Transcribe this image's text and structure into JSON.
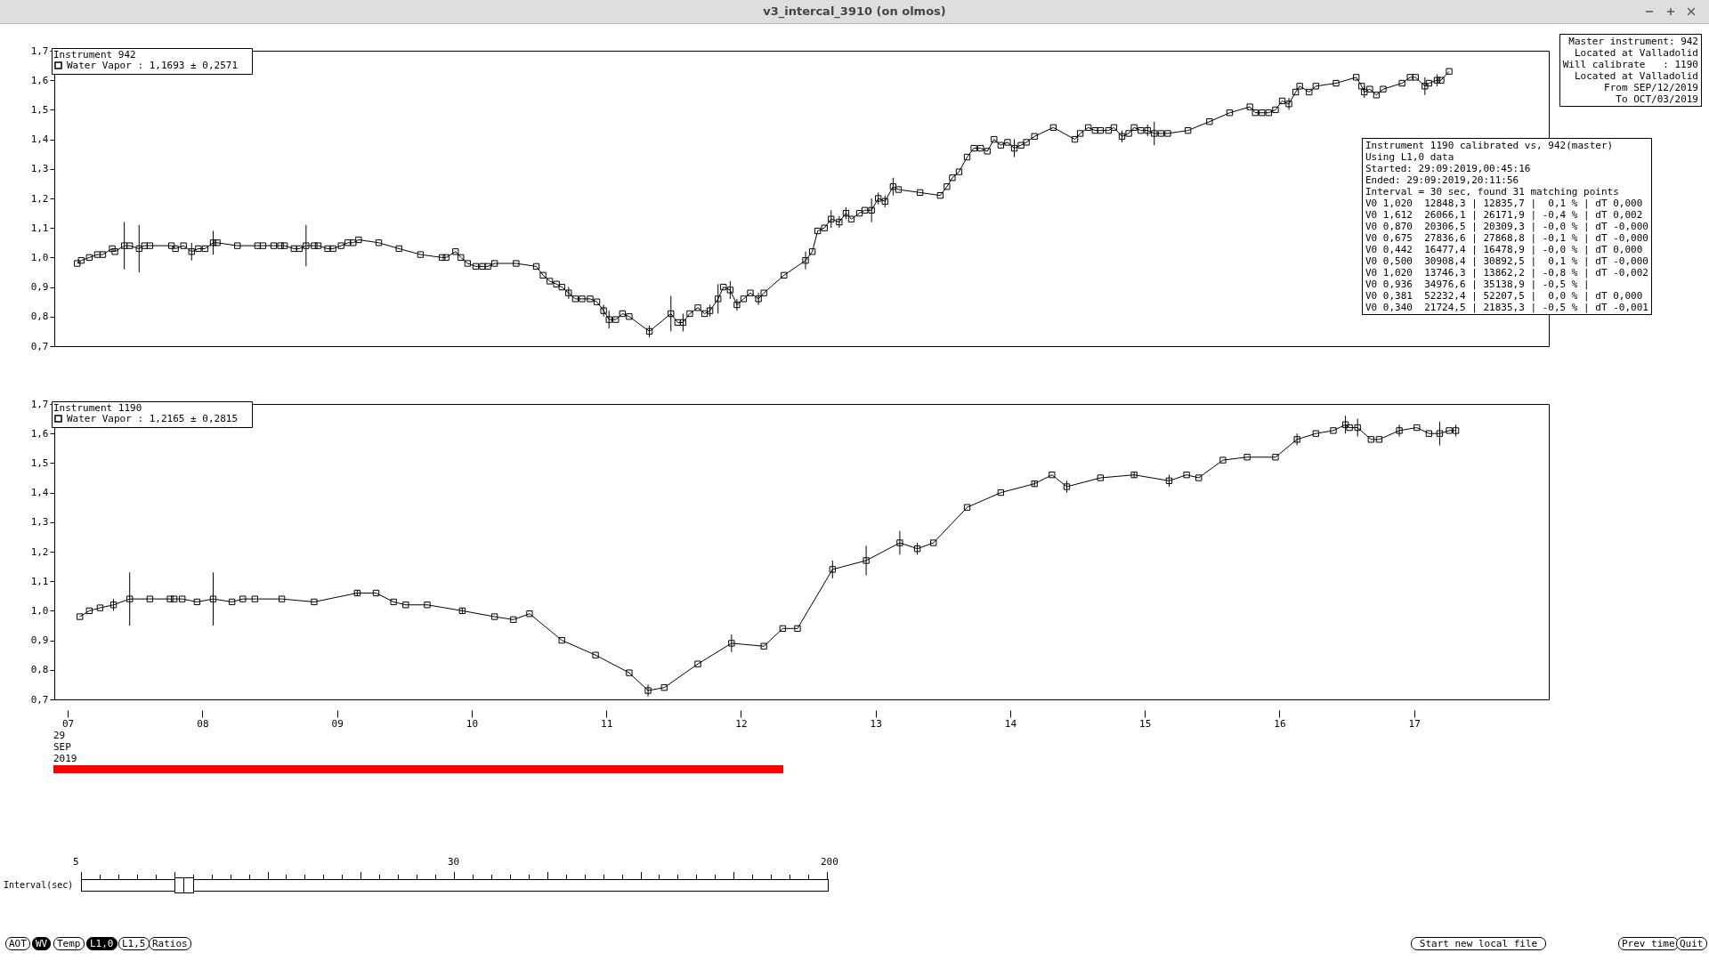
{
  "chart_data": [
    {
      "type": "line",
      "legend_title": "Instrument 942",
      "legend": "top left",
      "marker": "square",
      "tick_labels": "y",
      "xlim": [
        6.9,
        18.0
      ],
      "ylim": [
        0.7,
        1.7
      ],
      "yticks": [
        {
          "value": 0.7,
          "label": "0,7"
        },
        {
          "value": 0.8,
          "label": "0,8"
        },
        {
          "value": 0.9,
          "label": "0,9"
        },
        {
          "value": 1.0,
          "label": "1,0"
        },
        {
          "value": 1.1,
          "label": "1,1"
        },
        {
          "value": 1.2,
          "label": "1,2"
        },
        {
          "value": 1.3,
          "label": "1,3"
        },
        {
          "value": 1.4,
          "label": "1,4"
        },
        {
          "value": 1.5,
          "label": "1,5"
        },
        {
          "value": 1.6,
          "label": "1,6"
        },
        {
          "value": 1.7,
          "label": "1,7"
        }
      ],
      "series": [
        {
          "name": "Water Vapor :   1,1693 ± 0,2571",
          "color": "#000000",
          "x": [
            7.07,
            7.1,
            7.16,
            7.22,
            7.26,
            7.33,
            7.35,
            7.42,
            7.46,
            7.53,
            7.57,
            7.61,
            7.77,
            7.8,
            7.86,
            7.92,
            7.97,
            8.02,
            8.08,
            8.11,
            8.26,
            8.41,
            8.45,
            8.53,
            8.58,
            8.61,
            8.68,
            8.72,
            8.77,
            8.83,
            8.86,
            8.93,
            8.97,
            9.03,
            9.08,
            9.12,
            9.16,
            9.31,
            9.46,
            9.62,
            9.78,
            9.81,
            9.88,
            9.92,
            9.97,
            10.03,
            10.08,
            10.12,
            10.17,
            10.33,
            10.48,
            10.53,
            10.58,
            10.63,
            10.67,
            10.72,
            10.77,
            10.82,
            10.88,
            10.93,
            10.98,
            11.02,
            11.07,
            11.12,
            11.17,
            11.32,
            11.48,
            11.53,
            11.57,
            11.62,
            11.68,
            11.73,
            11.77,
            11.83,
            11.87,
            11.92,
            11.97,
            12.02,
            12.07,
            12.13,
            12.17,
            12.32,
            12.48,
            12.53,
            12.57,
            12.62,
            12.67,
            12.73,
            12.78,
            12.82,
            12.88,
            12.92,
            12.97,
            13.02,
            13.07,
            13.13,
            13.17,
            13.33,
            13.48,
            13.53,
            13.57,
            13.62,
            13.68,
            13.73,
            13.78,
            13.83,
            13.88,
            13.93,
            13.98,
            14.03,
            14.08,
            14.12,
            14.18,
            14.32,
            14.48,
            14.52,
            14.58,
            14.63,
            14.67,
            14.73,
            14.77,
            14.83,
            14.88,
            14.92,
            14.97,
            15.02,
            15.07,
            15.12,
            15.17,
            15.32,
            15.48,
            15.63,
            15.78,
            15.82,
            15.87,
            15.92,
            15.97,
            16.02,
            16.07,
            16.12,
            16.15,
            16.22,
            16.27,
            16.42,
            16.57,
            16.61,
            16.63,
            16.67,
            16.72,
            16.77,
            16.91,
            16.97,
            17.01,
            17.08,
            17.11,
            17.17,
            17.2,
            17.26
          ],
          "values": [
            0.98,
            0.99,
            1.0,
            1.01,
            1.01,
            1.03,
            1.02,
            1.04,
            1.04,
            1.03,
            1.04,
            1.04,
            1.04,
            1.03,
            1.04,
            1.02,
            1.03,
            1.03,
            1.05,
            1.05,
            1.04,
            1.04,
            1.04,
            1.04,
            1.04,
            1.04,
            1.03,
            1.03,
            1.04,
            1.04,
            1.04,
            1.03,
            1.03,
            1.04,
            1.05,
            1.05,
            1.06,
            1.05,
            1.03,
            1.01,
            1.0,
            1.0,
            1.02,
            1.0,
            0.98,
            0.97,
            0.97,
            0.97,
            0.98,
            0.98,
            0.97,
            0.94,
            0.92,
            0.91,
            0.9,
            0.88,
            0.86,
            0.86,
            0.86,
            0.85,
            0.82,
            0.79,
            0.79,
            0.81,
            0.8,
            0.75,
            0.81,
            0.78,
            0.78,
            0.81,
            0.83,
            0.81,
            0.82,
            0.86,
            0.9,
            0.89,
            0.84,
            0.86,
            0.88,
            0.86,
            0.88,
            0.94,
            0.99,
            1.02,
            1.09,
            1.1,
            1.13,
            1.12,
            1.15,
            1.13,
            1.15,
            1.16,
            1.16,
            1.2,
            1.19,
            1.24,
            1.23,
            1.22,
            1.21,
            1.24,
            1.27,
            1.29,
            1.34,
            1.37,
            1.37,
            1.36,
            1.4,
            1.38,
            1.39,
            1.37,
            1.38,
            1.39,
            1.41,
            1.44,
            1.4,
            1.42,
            1.44,
            1.43,
            1.43,
            1.43,
            1.44,
            1.41,
            1.42,
            1.44,
            1.43,
            1.43,
            1.42,
            1.42,
            1.42,
            1.43,
            1.46,
            1.49,
            1.51,
            1.49,
            1.49,
            1.49,
            1.5,
            1.53,
            1.52,
            1.56,
            1.58,
            1.56,
            1.58,
            1.59,
            1.61,
            1.58,
            1.56,
            1.57,
            1.55,
            1.57,
            1.59,
            1.61,
            1.61,
            1.58,
            1.59,
            1.6,
            1.6,
            1.63
          ],
          "errors": [
            null,
            null,
            null,
            null,
            null,
            null,
            null,
            0.08,
            null,
            0.08,
            null,
            null,
            null,
            null,
            null,
            0.03,
            null,
            null,
            0.04,
            null,
            null,
            null,
            null,
            null,
            null,
            null,
            null,
            null,
            0.07,
            null,
            null,
            null,
            null,
            null,
            null,
            null,
            null,
            null,
            null,
            null,
            null,
            null,
            null,
            null,
            null,
            null,
            null,
            null,
            null,
            null,
            null,
            null,
            null,
            null,
            null,
            0.02,
            null,
            null,
            null,
            null,
            0.02,
            0.03,
            null,
            null,
            null,
            0.02,
            0.06,
            null,
            0.03,
            null,
            null,
            null,
            0.02,
            0.05,
            null,
            0.03,
            0.02,
            null,
            null,
            0.02,
            null,
            null,
            0.03,
            null,
            null,
            null,
            0.03,
            0.02,
            0.02,
            null,
            null,
            null,
            0.04,
            0.02,
            0.02,
            0.03,
            null,
            null,
            null,
            null,
            null,
            null,
            null,
            null,
            null,
            null,
            null,
            null,
            null,
            0.03,
            null,
            null,
            null,
            null,
            null,
            null,
            null,
            null,
            null,
            null,
            null,
            0.02,
            null,
            null,
            null,
            0.02,
            0.04,
            null,
            null,
            null,
            null,
            null,
            null,
            null,
            null,
            null,
            null,
            null,
            0.02,
            null,
            null,
            null,
            null,
            null,
            null,
            null,
            0.02,
            null,
            null,
            null,
            null,
            null,
            null,
            0.03,
            null,
            0.02,
            null,
            null
          ]
        }
      ],
      "annotations": [
        "Master instrument: 942\nLocated at Valladolid\nWill calibrate   : 1190\nLocated at Valladolid\nFrom SEP/12/2019\nTo OCT/03/2019",
        "Instrument 1190 calibrated vs, 942(master)\nUsing L1,0 data\nStarted: 29:09:2019,00:45:16\nEnded: 29:09:2019,20:11:56\nInterval = 30 sec, found 31 matching points\nV0 1,020  12848,3 | 12835,7 |  0,1 % | dT 0,000\nV0 1,612  26066,1 | 26171,9 | -0,4 % | dT 0,002\nV0 0,870  20306,5 | 20309,3 | -0,0 % | dT -0,000\nV0 0,675  27836,6 | 27868,8 | -0,1 % | dT -0,000\nV0 0,442  16477,4 | 16478,9 | -0,0 % | dT 0,000\nV0 0,500  30908,4 | 30892,5 |  0,1 % | dT -0,000\nV0 1,020  13746,3 | 13862,2 | -0,8 % | dT -0,002\nV0 0,936  34976,6 | 35138,9 | -0,5 % |\nV0 0,381  52232,4 | 52207,5 |  0,0 % | dT 0,000\nV0 0,340  21724,5 | 21835,3 | -0,5 % | dT -0,001"
      ]
    },
    {
      "type": "line",
      "legend_title": "Instrument 1190",
      "legend": "top left",
      "marker": "square",
      "xlim": [
        6.9,
        18.0
      ],
      "ylim": [
        0.7,
        1.7
      ],
      "xticks": [
        {
          "value": 7,
          "label": "07"
        },
        {
          "value": 8,
          "label": "08"
        },
        {
          "value": 9,
          "label": "09"
        },
        {
          "value": 10,
          "label": "10"
        },
        {
          "value": 11,
          "label": "11"
        },
        {
          "value": 12,
          "label": "12"
        },
        {
          "value": 13,
          "label": "13"
        },
        {
          "value": 14,
          "label": "14"
        },
        {
          "value": 15,
          "label": "15"
        },
        {
          "value": 16,
          "label": "16"
        },
        {
          "value": 17,
          "label": "17"
        }
      ],
      "yticks": [
        {
          "value": 0.7,
          "label": "0,7"
        },
        {
          "value": 0.8,
          "label": "0,8"
        },
        {
          "value": 0.9,
          "label": "0,9"
        },
        {
          "value": 1.0,
          "label": "1,0"
        },
        {
          "value": 1.1,
          "label": "1,1"
        },
        {
          "value": 1.2,
          "label": "1,2"
        },
        {
          "value": 1.3,
          "label": "1,3"
        },
        {
          "value": 1.4,
          "label": "1,4"
        },
        {
          "value": 1.5,
          "label": "1,5"
        },
        {
          "value": 1.6,
          "label": "1,6"
        },
        {
          "value": 1.7,
          "label": "1,7"
        }
      ],
      "series": [
        {
          "name": "Water Vapor :   1,2165 ± 0,2815",
          "color": "#000000",
          "x": [
            7.09,
            7.16,
            7.24,
            7.34,
            7.46,
            7.61,
            7.76,
            7.79,
            7.85,
            7.96,
            8.08,
            8.22,
            8.3,
            8.39,
            8.59,
            8.83,
            9.15,
            9.29,
            9.42,
            9.51,
            9.67,
            9.93,
            10.17,
            10.31,
            10.43,
            10.67,
            10.92,
            11.17,
            11.31,
            11.43,
            11.68,
            11.93,
            12.17,
            12.31,
            12.42,
            12.68,
            12.93,
            13.18,
            13.31,
            13.43,
            13.68,
            13.93,
            14.18,
            14.31,
            14.42,
            14.67,
            14.92,
            15.18,
            15.31,
            15.4,
            15.58,
            15.76,
            15.97,
            16.13,
            16.27,
            16.4,
            16.49,
            16.52,
            16.58,
            16.68,
            16.74,
            16.89,
            17.02,
            17.11,
            17.19,
            17.26,
            17.31
          ],
          "values": [
            0.98,
            1.0,
            1.01,
            1.02,
            1.04,
            1.04,
            1.04,
            1.04,
            1.04,
            1.03,
            1.04,
            1.03,
            1.04,
            1.04,
            1.04,
            1.03,
            1.06,
            1.06,
            1.03,
            1.02,
            1.02,
            1.0,
            0.98,
            0.97,
            0.99,
            0.9,
            0.85,
            0.79,
            0.73,
            0.74,
            0.82,
            0.89,
            0.88,
            0.94,
            0.94,
            1.14,
            1.17,
            1.23,
            1.21,
            1.23,
            1.35,
            1.4,
            1.43,
            1.46,
            1.42,
            1.45,
            1.46,
            1.44,
            1.46,
            1.45,
            1.51,
            1.52,
            1.52,
            1.58,
            1.6,
            1.61,
            1.63,
            1.62,
            1.62,
            1.58,
            1.58,
            1.61,
            1.62,
            1.6,
            1.6,
            1.61,
            1.61
          ],
          "errors": [
            null,
            null,
            null,
            0.02,
            0.09,
            null,
            null,
            null,
            null,
            null,
            0.09,
            null,
            null,
            null,
            null,
            null,
            0.01,
            null,
            null,
            null,
            null,
            0.01,
            null,
            null,
            null,
            null,
            null,
            null,
            0.02,
            null,
            null,
            0.03,
            null,
            null,
            null,
            0.03,
            0.05,
            0.04,
            0.02,
            null,
            null,
            null,
            0.01,
            null,
            0.02,
            null,
            0.01,
            0.02,
            null,
            null,
            null,
            null,
            null,
            0.02,
            null,
            null,
            0.03,
            null,
            0.03,
            null,
            null,
            0.02,
            null,
            null,
            0.04,
            null,
            0.02
          ]
        }
      ],
      "annotations": [
        "29\nSEP\n2019"
      ]
    },
    {
      "type": "other",
      "title": "v3_intercal_3910 (on olmos)",
      "annotations": [
        "Interval(sec)",
        "5",
        "30",
        "200",
        "AOT",
        "WV",
        "Temp",
        "L1,0",
        "L1,5",
        "Ratios",
        "Start new local file",
        "Prev time",
        "Quit"
      ]
    }
  ]
}
